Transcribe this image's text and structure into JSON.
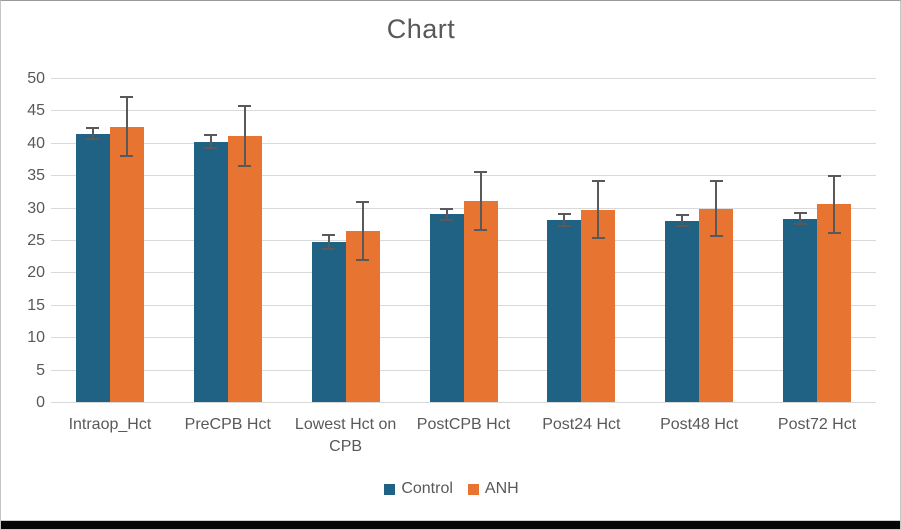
{
  "window": {
    "border_color": "#C6C6C6",
    "bottom_strip_color": "#060606",
    "background": "#FFFFFF"
  },
  "chart_data": {
    "type": "bar",
    "title": "Chart",
    "categories": [
      "Intraop_Hct",
      "PreCPB Hct",
      "Lowest Hct on CPB",
      "PostCPB Hct",
      "Post24 Hct",
      "Post48 Hct",
      "Post72 Hct"
    ],
    "series": [
      {
        "name": "Control",
        "color": "#1F6284",
        "values": [
          41.4,
          40.2,
          24.7,
          29.0,
          28.1,
          28.0,
          28.3
        ],
        "errors": [
          1.0,
          1.1,
          1.2,
          1.0,
          1.1,
          1.0,
          1.0
        ]
      },
      {
        "name": "ANH",
        "color": "#E87431",
        "values": [
          42.5,
          41.1,
          26.4,
          31.0,
          29.7,
          29.8,
          30.5
        ],
        "errors": [
          4.7,
          4.8,
          4.6,
          4.6,
          4.6,
          4.4,
          4.6
        ]
      }
    ],
    "xlabel": "",
    "ylabel": "",
    "ylim": [
      0,
      50
    ],
    "yticks": [
      0,
      5,
      10,
      15,
      20,
      25,
      30,
      35,
      40,
      45,
      50
    ],
    "grid": true,
    "legend_position": "bottom",
    "colors": {
      "grid": "#D9D9D9",
      "text": "#595959",
      "error_bar": "#595959",
      "background": "#FFFFFF"
    }
  }
}
